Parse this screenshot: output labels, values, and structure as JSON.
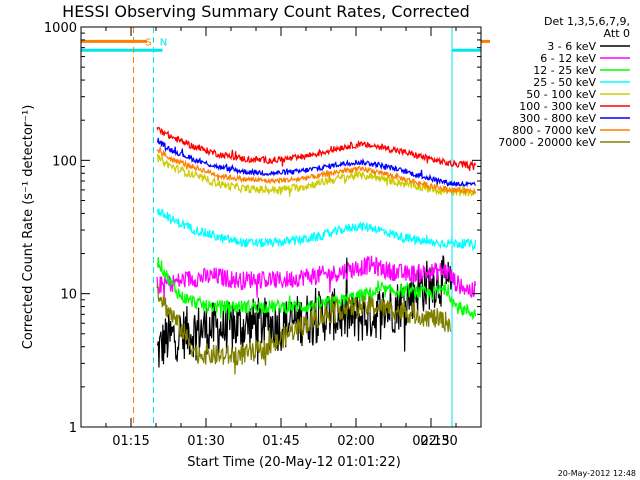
{
  "chart_data": {
    "type": "line",
    "title": "HESSI Observing Summary Count Rates, Corrected",
    "xlabel": "Start Time (20-May-12 01:01:22)",
    "ylabel": "Corrected Count Rate (s⁻¹ detector⁻¹)",
    "y_scale": "log",
    "ylim": [
      1,
      1000
    ],
    "x_minutes_range": [
      5,
      85
    ],
    "y_ticks": [
      {
        "value": 1,
        "label": "1"
      },
      {
        "value": 10,
        "label": "10"
      },
      {
        "value": 100,
        "label": "100"
      },
      {
        "value": 1000,
        "label": "1000"
      }
    ],
    "x_ticks": [
      {
        "minutes": 15,
        "label": "01:15"
      },
      {
        "minutes": 30,
        "label": "01:30"
      },
      {
        "minutes": 45,
        "label": "01:45"
      },
      {
        "minutes": 60,
        "label": "02:00"
      },
      {
        "minutes": 75,
        "label": "02:15"
      },
      {
        "minutes": 90,
        "label": "02:30"
      }
    ],
    "legend": {
      "position": "right",
      "header": [
        "Det 1,3,5,6,7,9,",
        "Att 0"
      ]
    },
    "flag_labels": [
      {
        "text": "S",
        "minutes": 18.5,
        "color": "#ff7f00"
      },
      {
        "text": "N",
        "minutes": 21.5,
        "color": "#00e5ee"
      }
    ],
    "markers": [
      {
        "minutes": 15.5,
        "color": "#ff7f00",
        "style": "dashed"
      },
      {
        "minutes": 19.5,
        "color": "#00e5ee",
        "style": "dashed"
      },
      {
        "minutes": 79.2,
        "color": "#00e5ee",
        "style": "solid"
      },
      {
        "minutes": 86.8,
        "color": "#ff7f00",
        "style": "solid"
      },
      {
        "minutes": 96.4,
        "color": "#00e5ee",
        "style": "dashed"
      }
    ],
    "flags": [
      {
        "color": "#ff7f00",
        "y": 780,
        "segments": [
          [
            5,
            18.2
          ],
          [
            86.8,
            96.4
          ]
        ]
      },
      {
        "color": "#00e5ee",
        "y": 670,
        "segments": [
          [
            5,
            21.3
          ],
          [
            79.2,
            96.4
          ]
        ]
      }
    ],
    "series": [
      {
        "name": "3 - 6 keV",
        "color": "#000000",
        "noise": 0.2,
        "points": [
          [
            20.2,
            3.6
          ],
          [
            22,
            4.5
          ],
          [
            25,
            5
          ],
          [
            30,
            5.5
          ],
          [
            35,
            5.5
          ],
          [
            40,
            6
          ],
          [
            45,
            5.8
          ],
          [
            50,
            6.5
          ],
          [
            55,
            7
          ],
          [
            60,
            6.5
          ],
          [
            63,
            7
          ],
          [
            68,
            8
          ],
          [
            72,
            10.5
          ],
          [
            75,
            12
          ],
          [
            77,
            12.5
          ],
          [
            79.2,
            11
          ]
        ]
      },
      {
        "name": "6 - 12 keV",
        "color": "#ff00ff",
        "noise": 0.07,
        "points": [
          [
            20.2,
            11.5
          ],
          [
            23,
            12
          ],
          [
            27,
            13
          ],
          [
            32,
            13.5
          ],
          [
            37,
            12.5
          ],
          [
            40,
            13
          ],
          [
            45,
            12.5
          ],
          [
            50,
            13.5
          ],
          [
            55,
            14
          ],
          [
            60,
            15.5
          ],
          [
            63,
            16.5
          ],
          [
            66,
            15
          ],
          [
            70,
            14
          ],
          [
            75,
            14.5
          ],
          [
            78,
            15
          ],
          [
            80,
            12
          ],
          [
            84,
            10
          ]
        ]
      },
      {
        "name": "12 - 25 keV",
        "color": "#00ff00",
        "noise": 0.05,
        "points": [
          [
            20.2,
            18
          ],
          [
            21.5,
            15
          ],
          [
            23,
            12
          ],
          [
            25,
            9.5
          ],
          [
            30,
            8
          ],
          [
            35,
            8
          ],
          [
            40,
            8
          ],
          [
            45,
            8
          ],
          [
            50,
            8
          ],
          [
            55,
            8.5
          ],
          [
            60,
            9.5
          ],
          [
            65,
            10.5
          ],
          [
            70,
            10.5
          ],
          [
            75,
            10
          ],
          [
            78,
            11
          ],
          [
            80,
            8
          ],
          [
            84,
            7
          ]
        ]
      },
      {
        "name": "25 - 50 keV",
        "color": "#00ffff",
        "noise": 0.035,
        "points": [
          [
            20.2,
            42
          ],
          [
            23,
            36
          ],
          [
            28,
            30
          ],
          [
            33,
            26
          ],
          [
            38,
            24
          ],
          [
            43,
            24
          ],
          [
            48,
            25
          ],
          [
            53,
            27
          ],
          [
            57,
            30
          ],
          [
            60,
            32
          ],
          [
            63,
            31.5
          ],
          [
            66,
            29
          ],
          [
            70,
            26
          ],
          [
            75,
            24
          ],
          [
            79,
            24
          ],
          [
            84,
            23.5
          ]
        ]
      },
      {
        "name": "50 - 100 keV",
        "color": "#cccc00",
        "noise": 0.03,
        "points": [
          [
            20.2,
            105
          ],
          [
            23,
            90
          ],
          [
            28,
            76
          ],
          [
            33,
            66
          ],
          [
            38,
            61
          ],
          [
            43,
            60
          ],
          [
            48,
            62
          ],
          [
            53,
            68
          ],
          [
            57,
            74
          ],
          [
            60,
            77
          ],
          [
            63,
            76
          ],
          [
            66,
            72
          ],
          [
            70,
            66
          ],
          [
            75,
            61
          ],
          [
            79,
            58
          ],
          [
            84,
            57
          ]
        ]
      },
      {
        "name": "100 - 300 keV",
        "color": "#ff0000",
        "noise": 0.025,
        "points": [
          [
            20.2,
            175
          ],
          [
            23,
            150
          ],
          [
            28,
            125
          ],
          [
            33,
            110
          ],
          [
            38,
            102
          ],
          [
            43,
            100
          ],
          [
            48,
            104
          ],
          [
            53,
            114
          ],
          [
            57,
            125
          ],
          [
            60,
            131
          ],
          [
            63,
            129
          ],
          [
            66,
            124
          ],
          [
            70,
            114
          ],
          [
            75,
            102
          ],
          [
            79,
            94
          ],
          [
            84,
            92
          ]
        ]
      },
      {
        "name": "300 - 800 keV",
        "color": "#0000ff",
        "noise": 0.02,
        "points": [
          [
            20.2,
            140
          ],
          [
            23,
            120
          ],
          [
            28,
            100
          ],
          [
            33,
            88
          ],
          [
            38,
            82
          ],
          [
            43,
            80
          ],
          [
            48,
            82
          ],
          [
            53,
            88
          ],
          [
            57,
            94
          ],
          [
            60,
            97
          ],
          [
            63,
            95
          ],
          [
            66,
            90
          ],
          [
            70,
            82
          ],
          [
            75,
            73
          ],
          [
            79,
            67
          ],
          [
            84,
            65
          ]
        ]
      },
      {
        "name": "800 - 7000 keV",
        "color": "#ff7f00",
        "noise": 0.02,
        "points": [
          [
            20.2,
            120
          ],
          [
            23,
            102
          ],
          [
            28,
            88
          ],
          [
            33,
            76
          ],
          [
            38,
            72
          ],
          [
            43,
            70
          ],
          [
            48,
            72
          ],
          [
            53,
            77
          ],
          [
            57,
            83
          ],
          [
            60,
            86
          ],
          [
            63,
            84
          ],
          [
            66,
            79
          ],
          [
            70,
            72
          ],
          [
            75,
            64
          ],
          [
            79,
            60
          ],
          [
            84,
            59
          ]
        ]
      },
      {
        "name": "7000 - 20000 keV",
        "color": "#808000",
        "noise": 0.08,
        "points": [
          [
            20.2,
            11
          ],
          [
            22,
            8
          ],
          [
            25,
            5.5
          ],
          [
            28,
            3.6
          ],
          [
            33,
            3.4
          ],
          [
            38,
            3.5
          ],
          [
            43,
            4
          ],
          [
            48,
            5.5
          ],
          [
            52,
            6.5
          ],
          [
            56,
            7.5
          ],
          [
            60,
            8
          ],
          [
            64,
            8
          ],
          [
            68,
            7.5
          ],
          [
            72,
            7
          ],
          [
            76,
            6.5
          ],
          [
            79,
            6
          ]
        ]
      }
    ]
  },
  "timestamp": "20-May-2012 12:48"
}
